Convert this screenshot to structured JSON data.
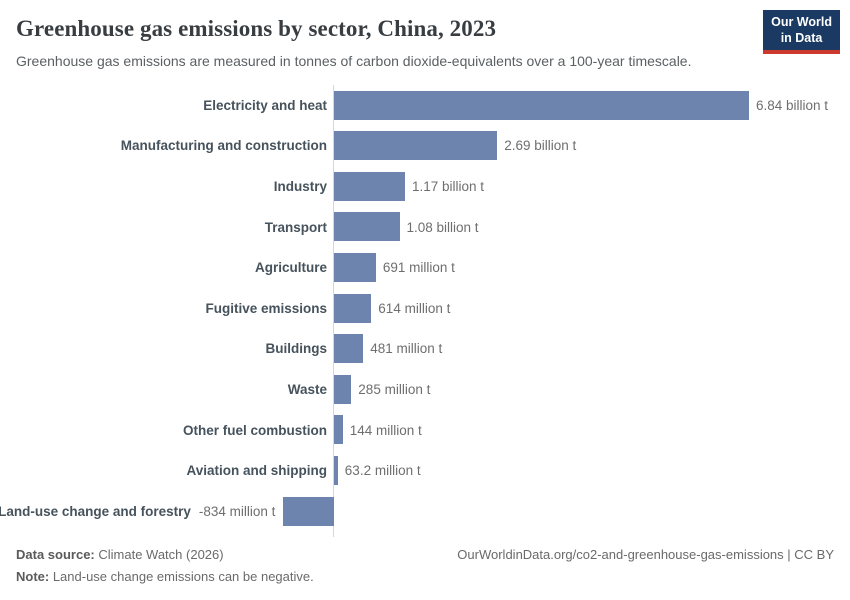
{
  "header": {
    "title": "Greenhouse gas emissions by sector, China, 2023",
    "subtitle": "Greenhouse gas emissions are measured in tonnes of carbon dioxide-equivalents over a 100-year timescale.",
    "logo": {
      "line1": "Our World",
      "line2": "in Data"
    }
  },
  "colors": {
    "bar": "#6d84ae",
    "logo_bg": "#1a3a63",
    "logo_accent": "#cc392e",
    "axis": "#d4d7d9"
  },
  "chart_data": {
    "type": "bar",
    "orientation": "horizontal",
    "title": "Greenhouse gas emissions by sector, China, 2023",
    "unit": "tonnes of carbon dioxide-equivalents (100-year timescale)",
    "categories": [
      "Electricity and heat",
      "Manufacturing and construction",
      "Industry",
      "Transport",
      "Agriculture",
      "Fugitive emissions",
      "Buildings",
      "Waste",
      "Other fuel combustion",
      "Aviation and shipping",
      "Land-use change and forestry"
    ],
    "values_million_t": [
      6840,
      2690,
      1170,
      1080,
      691,
      614,
      481,
      285,
      144,
      63.2,
      -834
    ],
    "value_labels": [
      "6.84 billion t",
      "2.69 billion t",
      "1.17 billion t",
      "1.08 billion t",
      "691 million t",
      "614 million t",
      "481 million t",
      "285 million t",
      "144 million t",
      "63.2 million t",
      "-834 million t"
    ],
    "xlim_million_t": [
      -900,
      7000
    ],
    "zero_line": true,
    "gridlines": false,
    "legend": "none",
    "bar_color": "#6d84ae"
  },
  "footer": {
    "data_source_label": "Data source:",
    "data_source_value": " Climate Watch (2026)",
    "note_label": "Note:",
    "note_value": " Land-use change emissions can be negative.",
    "link": "OurWorldinData.org/co2-and-greenhouse-gas-emissions | CC BY"
  }
}
